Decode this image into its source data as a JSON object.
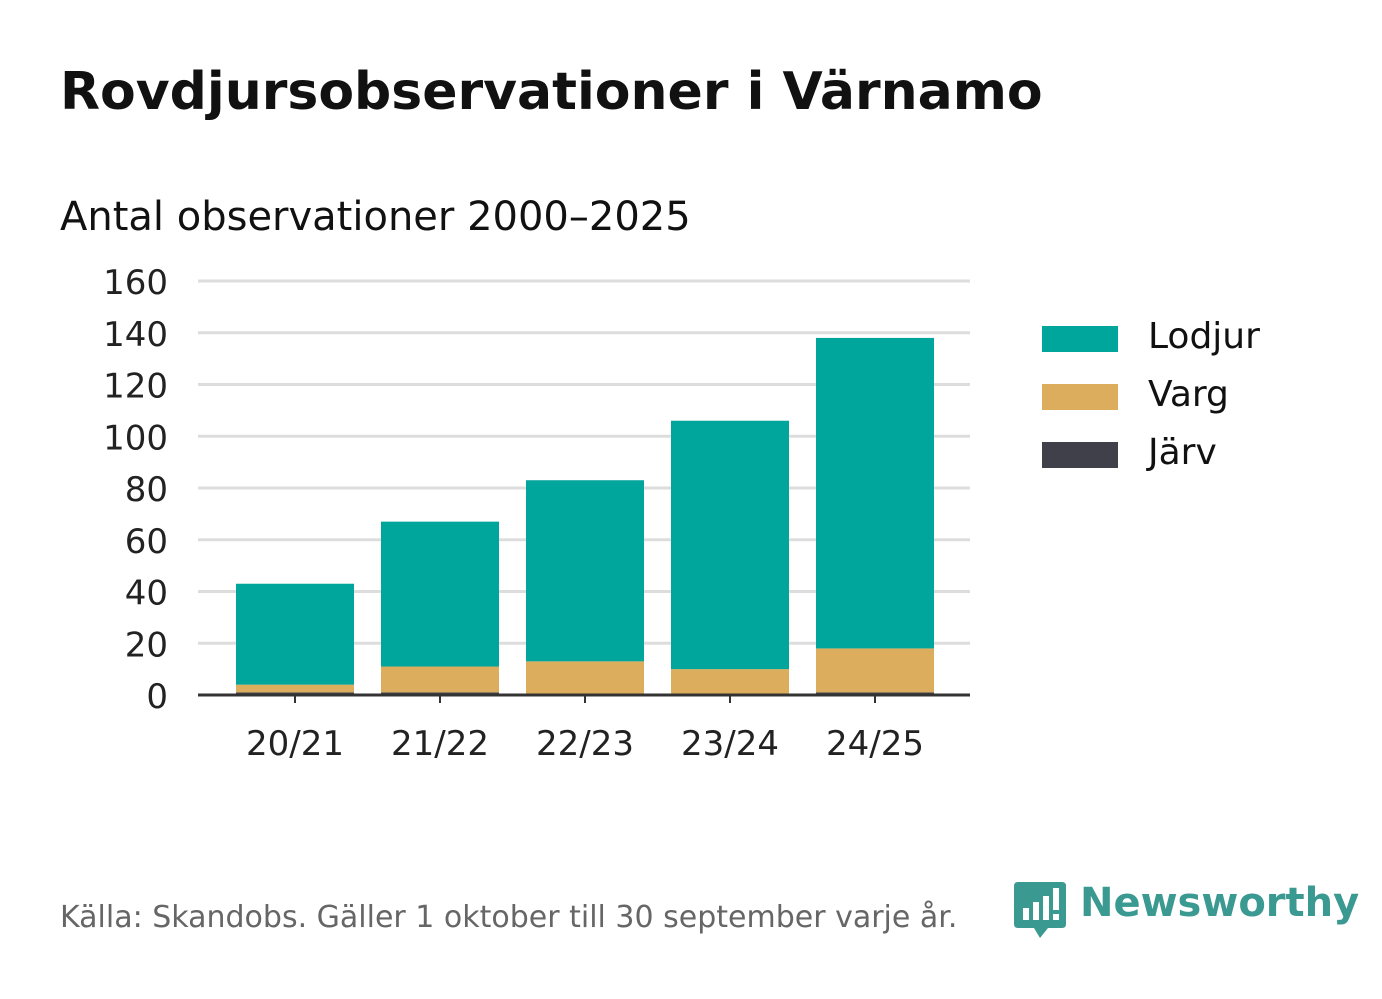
{
  "title": "Rovdjursobservationer i Värnamo",
  "subtitle": "Antal observationer 2000–2025",
  "footer": "Källa: Skandobs. Gäller 1 oktober till 30 september varje år.",
  "brand": {
    "name": "Newsworthy",
    "color": "#3a9990",
    "icon": "chart-bubble-icon"
  },
  "colors": {
    "Lodjur": "#00a59b",
    "Varg": "#dbad5c",
    "Järv": "#40404a",
    "grid": "#dddddd",
    "axis": "#333333"
  },
  "chart_data": {
    "type": "bar",
    "stacked": true,
    "title": "Antal observationer 2000–2025",
    "categories": [
      "20/21",
      "21/22",
      "22/23",
      "23/24",
      "24/25"
    ],
    "series": [
      {
        "name": "Järv",
        "values": [
          1,
          1,
          0,
          0,
          1
        ]
      },
      {
        "name": "Varg",
        "values": [
          3,
          10,
          13,
          10,
          17
        ]
      },
      {
        "name": "Lodjur",
        "values": [
          39,
          56,
          70,
          96,
          120
        ]
      }
    ],
    "legend_order": [
      "Lodjur",
      "Varg",
      "Järv"
    ],
    "ylim": [
      0,
      160
    ],
    "yticks": [
      0,
      20,
      40,
      60,
      80,
      100,
      120,
      140,
      160
    ],
    "grid": true,
    "legend": "right"
  }
}
